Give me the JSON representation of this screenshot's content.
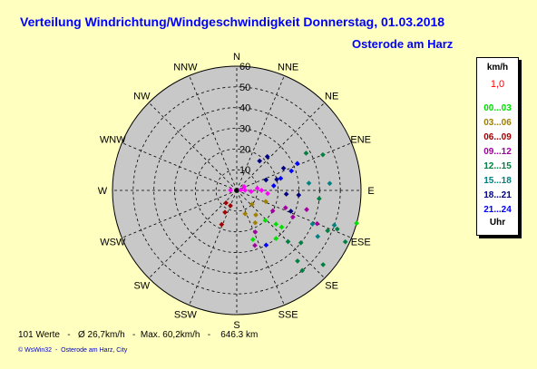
{
  "header": {
    "title": "Verteilung Windrichtung/Windgeschwindigkeit  Donnerstag, 01.03.2018",
    "location": "Osterode am Harz"
  },
  "legend": {
    "unit": "km/h",
    "max_value": "1,0",
    "entries": [
      {
        "label": "00...03",
        "color": "#00e000"
      },
      {
        "label": "03...06",
        "color": "#a08000"
      },
      {
        "label": "06...09",
        "color": "#a00000"
      },
      {
        "label": "09...12",
        "color": "#a000a0"
      },
      {
        "label": "12...15",
        "color": "#008040"
      },
      {
        "label": "15...18",
        "color": "#008080"
      },
      {
        "label": "18...21",
        "color": "#000080"
      },
      {
        "label": "21...24",
        "color": "#0000ff"
      }
    ],
    "footer": "Uhr"
  },
  "footer": {
    "stats": "101 Werte   -   Ø 26,7km/h   -  Max. 60,2km/h   -    646.3 km",
    "credit": "© WsWin32  -  Osterode am Harz, City"
  },
  "chart_data": {
    "type": "scatter",
    "subtype": "polar",
    "directions": [
      "N",
      "NNE",
      "NE",
      "ENE",
      "E",
      "ESE",
      "SE",
      "SSE",
      "S",
      "SSW",
      "SW",
      "WSW",
      "W",
      "WNW",
      "NW",
      "NNW"
    ],
    "radial_ticks": [
      "10",
      "20",
      "30",
      "40",
      "50",
      "60"
    ],
    "rlim": [
      0,
      60
    ],
    "points": [
      {
        "dir": "E",
        "speed": 2,
        "color": "#ff00ff"
      },
      {
        "dir": "E",
        "speed": 4,
        "color": "#ff00ff"
      },
      {
        "dir": "E",
        "speed": 7,
        "color": "#ff00ff"
      },
      {
        "dir": "E",
        "speed": 10,
        "color": "#ff00ff"
      },
      {
        "dir": "E",
        "speed": 12,
        "color": "#ff00ff"
      },
      {
        "dir": "E",
        "speed": 15,
        "color": "#ff00ff"
      },
      {
        "dir": "ENE",
        "speed": 4,
        "color": "#ff00ff"
      },
      {
        "dir": "W",
        "speed": 3,
        "color": "#ff00ff"
      },
      {
        "dir": "ENE",
        "speed": 20,
        "color": "#000080"
      },
      {
        "dir": "ENE",
        "speed": 25,
        "color": "#000080"
      },
      {
        "dir": "ENE",
        "speed": 28,
        "color": "#0000ff"
      },
      {
        "dir": "NE",
        "speed": 18,
        "color": "#000080"
      },
      {
        "dir": "ENE",
        "speed": 32,
        "color": "#0000ff"
      },
      {
        "dir": "E",
        "speed": 24,
        "color": "#000080"
      },
      {
        "dir": "ENE",
        "speed": 38,
        "color": "#008040"
      },
      {
        "dir": "ENE",
        "speed": 45,
        "color": "#008040"
      },
      {
        "dir": "E",
        "speed": 40,
        "color": "#008040"
      },
      {
        "dir": "E",
        "speed": 45,
        "color": "#008080"
      },
      {
        "dir": "ESE",
        "speed": 40,
        "color": "#008080"
      },
      {
        "dir": "ESE",
        "speed": 45,
        "color": "#008080"
      },
      {
        "dir": "ESE",
        "speed": 50,
        "color": "#008080"
      },
      {
        "dir": "ESE",
        "speed": 58,
        "color": "#008040"
      },
      {
        "dir": "ESE",
        "speed": 60,
        "color": "#00e000"
      },
      {
        "dir": "ESE",
        "speed": 52,
        "color": "#008040"
      },
      {
        "dir": "SE",
        "speed": 45,
        "color": "#008040"
      },
      {
        "dir": "SE",
        "speed": 40,
        "color": "#008040"
      },
      {
        "dir": "SE",
        "speed": 35,
        "color": "#008040"
      },
      {
        "dir": "SE",
        "speed": 30,
        "color": "#00e000"
      },
      {
        "dir": "SE",
        "speed": 25,
        "color": "#00e000"
      },
      {
        "dir": "SE",
        "speed": 20,
        "color": "#00e000"
      },
      {
        "dir": "SE",
        "speed": 15,
        "color": "#a08000"
      },
      {
        "dir": "SE",
        "speed": 10,
        "color": "#a08000"
      },
      {
        "dir": "SSE",
        "speed": 12,
        "color": "#a08000"
      },
      {
        "dir": "SSE",
        "speed": 18,
        "color": "#a08000"
      },
      {
        "dir": "SSE",
        "speed": 22,
        "color": "#a000a0"
      },
      {
        "dir": "SSE",
        "speed": 28,
        "color": "#a000a0"
      },
      {
        "dir": "SSE",
        "speed": 30,
        "color": "#0000ff"
      },
      {
        "dir": "SSW",
        "speed": 8,
        "color": "#a00000"
      },
      {
        "dir": "SSW",
        "speed": 12,
        "color": "#a00000"
      },
      {
        "dir": "SW",
        "speed": 8,
        "color": "#a00000"
      },
      {
        "dir": "SSW",
        "speed": 18,
        "color": "#a00000"
      },
      {
        "dir": "ESE",
        "speed": 20,
        "color": "#a000a0"
      },
      {
        "dir": "ESE",
        "speed": 25,
        "color": "#a000a0"
      },
      {
        "dir": "ESE",
        "speed": 30,
        "color": "#a000a0"
      },
      {
        "dir": "ESE",
        "speed": 35,
        "color": "#a000a0"
      },
      {
        "dir": "ESE",
        "speed": 28,
        "color": "#000080"
      },
      {
        "dir": "E",
        "speed": 30,
        "color": "#000080"
      },
      {
        "dir": "E",
        "speed": 35,
        "color": "#008080"
      },
      {
        "dir": "ESE",
        "speed": 42,
        "color": "#a000a0"
      },
      {
        "dir": "SE",
        "speed": 50,
        "color": "#008040"
      },
      {
        "dir": "SE",
        "speed": 55,
        "color": "#008040"
      },
      {
        "dir": "ESE",
        "speed": 48,
        "color": "#008040"
      },
      {
        "dir": "ENE",
        "speed": 22,
        "color": "#0000ff"
      },
      {
        "dir": "NE",
        "speed": 22,
        "color": "#000080"
      },
      {
        "dir": "ENE",
        "speed": 15,
        "color": "#000080"
      },
      {
        "dir": "E",
        "speed": 18,
        "color": "#0000ff"
      },
      {
        "dir": "ESE",
        "speed": 15,
        "color": "#a08000"
      },
      {
        "dir": "SSE",
        "speed": 25,
        "color": "#00e000"
      },
      {
        "dir": "SE",
        "speed": 28,
        "color": "#00e000"
      }
    ]
  }
}
